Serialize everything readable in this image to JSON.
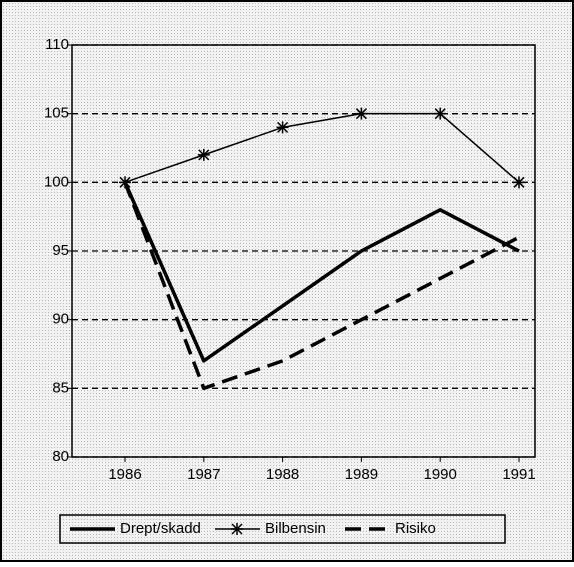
{
  "chart_data": {
    "type": "line",
    "categories": [
      "1986",
      "1987",
      "1988",
      "1989",
      "1990",
      "1991"
    ],
    "series": [
      {
        "name": "Drept/skadd",
        "color": "#000000",
        "style": "solid",
        "values": [
          100,
          87,
          91,
          95,
          98,
          95
        ]
      },
      {
        "name": "Bilbensin",
        "color": "#000000",
        "style": "thin",
        "marker": "star",
        "values": [
          100,
          102,
          104,
          105,
          105,
          100
        ]
      },
      {
        "name": "Risiko",
        "color": "#000000",
        "style": "dashed",
        "values": [
          100,
          85,
          87,
          90,
          93,
          96
        ]
      }
    ],
    "ylim": [
      80,
      110
    ],
    "yticks": [
      80,
      85,
      90,
      95,
      100,
      105,
      110
    ],
    "grid": true,
    "legend": "bottom"
  }
}
